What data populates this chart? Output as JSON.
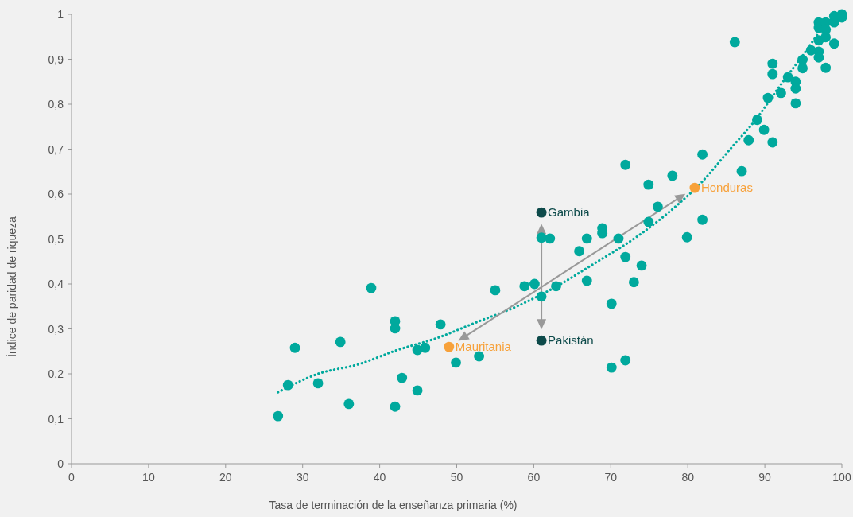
{
  "chart_data": {
    "type": "scatter",
    "xlabel": "Tasa de terminación de la enseñanza primaria (%)",
    "ylabel": "Índice de paridad de riqueza",
    "xlim": [
      0,
      100
    ],
    "ylim": [
      0,
      1
    ],
    "xticks": [
      0,
      10,
      20,
      30,
      40,
      50,
      60,
      70,
      80,
      90,
      100
    ],
    "yticks": [
      0,
      {
        "value": 0.1,
        "label": "0,1"
      },
      {
        "value": 0.2,
        "label": "0,2"
      },
      {
        "value": 0.3,
        "label": "0,3"
      },
      {
        "value": 0.4,
        "label": "0,4"
      },
      {
        "value": 0.5,
        "label": "0,5"
      },
      {
        "value": 0.6,
        "label": "0,6"
      },
      {
        "value": 0.7,
        "label": "0,7"
      },
      {
        "value": 0.8,
        "label": "0,8"
      },
      {
        "value": 0.9,
        "label": "0,9"
      },
      1
    ],
    "grid": false,
    "marker": "circle",
    "series": [
      {
        "type": "line",
        "color": "#00a99d",
        "line_style": "dotted",
        "marker": "none",
        "x": [
          26.8,
          32,
          37.2,
          42.3,
          47.5,
          52.6,
          57.8,
          63,
          68.1,
          73.3,
          78.4,
          81.5,
          85.7,
          88.7,
          91.8,
          94.9,
          98,
          99
        ],
        "values": [
          0.159,
          0.2,
          0.221,
          0.253,
          0.28,
          0.315,
          0.35,
          0.395,
          0.448,
          0.504,
          0.572,
          0.621,
          0.704,
          0.763,
          0.837,
          0.908,
          0.979,
          0.995
        ]
      },
      {
        "color": "#00a99d",
        "x": [
          26.8,
          28.1,
          29,
          32,
          34.9,
          36,
          38.9,
          42,
          42,
          42,
          42.9,
          44.9,
          44.9,
          45.9,
          47.9,
          49.9,
          52.9,
          55,
          58.8,
          60.1,
          61,
          61,
          62.1,
          62.9,
          65.9,
          66.9,
          66.9,
          68.9,
          68.9,
          70.1,
          70.1,
          71,
          71.9,
          71.9,
          71.9,
          73,
          74,
          74.9,
          74.9,
          76.1,
          78,
          79.9,
          81.9,
          81.9,
          86.1,
          87,
          87.9,
          89,
          89.9,
          90.4,
          91,
          91,
          91,
          92.1,
          93,
          94,
          94,
          94,
          94.9,
          94.9,
          96,
          97,
          97,
          97,
          97,
          97,
          97.9,
          97.9,
          97.9,
          97.9,
          99,
          99,
          99,
          100,
          100
        ],
        "values": [
          0.106,
          0.175,
          0.258,
          0.179,
          0.271,
          0.133,
          0.391,
          0.317,
          0.301,
          0.127,
          0.191,
          0.253,
          0.163,
          0.258,
          0.31,
          0.225,
          0.239,
          0.386,
          0.395,
          0.4,
          0.503,
          0.372,
          0.501,
          0.395,
          0.473,
          0.501,
          0.407,
          0.524,
          0.513,
          0.356,
          0.214,
          0.501,
          0.665,
          0.46,
          0.23,
          0.404,
          0.441,
          0.621,
          0.538,
          0.572,
          0.641,
          0.504,
          0.688,
          0.543,
          0.938,
          0.651,
          0.72,
          0.765,
          0.743,
          0.814,
          0.89,
          0.867,
          0.715,
          0.825,
          0.86,
          0.85,
          0.835,
          0.802,
          0.899,
          0.88,
          0.92,
          0.982,
          0.97,
          0.942,
          0.917,
          0.904,
          0.982,
          0.966,
          0.949,
          0.881,
          0.996,
          0.982,
          0.935,
          1,
          0.993
        ]
      },
      {
        "type": "scatter",
        "color": "#f7a13a",
        "x": [
          49,
          80.9
        ],
        "values": [
          0.26,
          0.614
        ],
        "value_labels": [
          "Mauritania",
          "Honduras"
        ]
      },
      {
        "type": "scatter",
        "color": "#0d4a4a",
        "x": [
          61,
          61
        ],
        "values": [
          0.559,
          0.274
        ],
        "value_labels": [
          "Gambia",
          "Pakistán"
        ]
      }
    ]
  }
}
